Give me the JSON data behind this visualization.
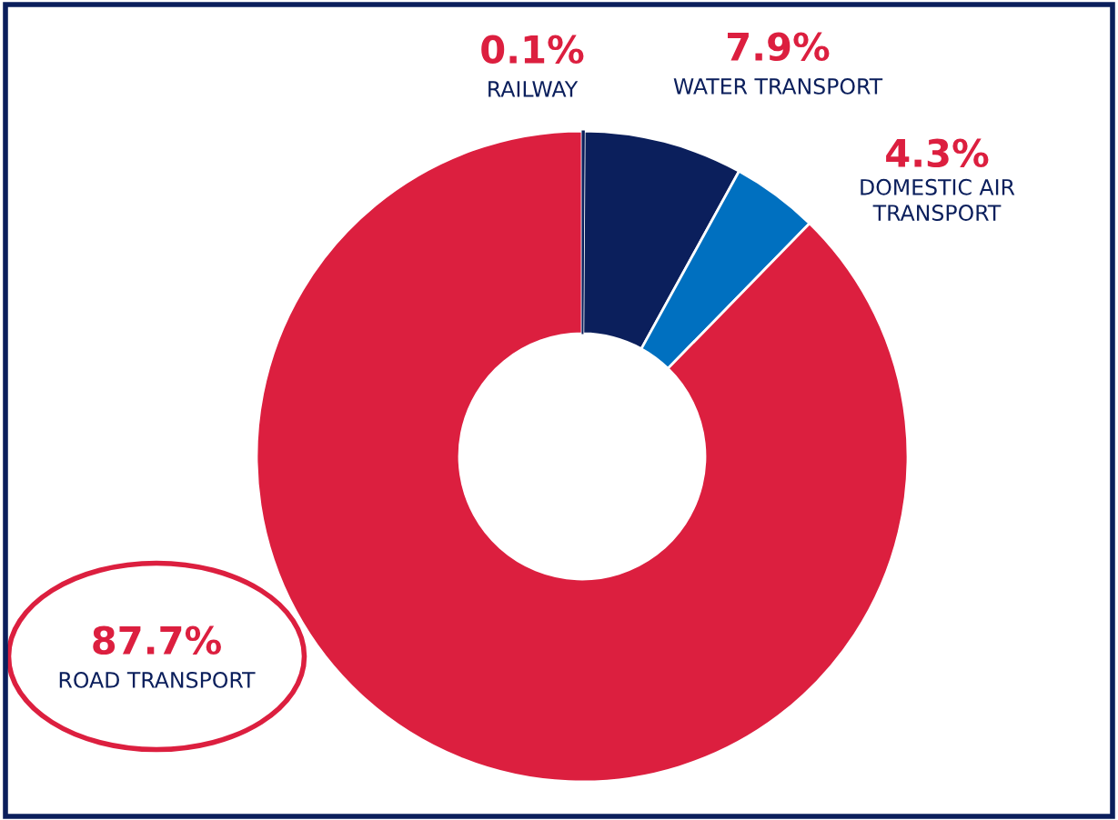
{
  "chart_data": {
    "type": "donut",
    "categories": [
      "RAILWAY",
      "WATER TRANSPORT",
      "DOMESTIC AIR\nTRANSPORT",
      "ROAD TRANSPORT"
    ],
    "values": [
      0.1,
      7.9,
      4.3,
      87.7
    ],
    "colors": [
      "#0b1f5c",
      "#0b1f5c",
      "#0070c0",
      "#dc1f3f"
    ],
    "value_labels": [
      "0.1%",
      "7.9%",
      "4.3%",
      "87.7%"
    ],
    "legend": false
  }
}
